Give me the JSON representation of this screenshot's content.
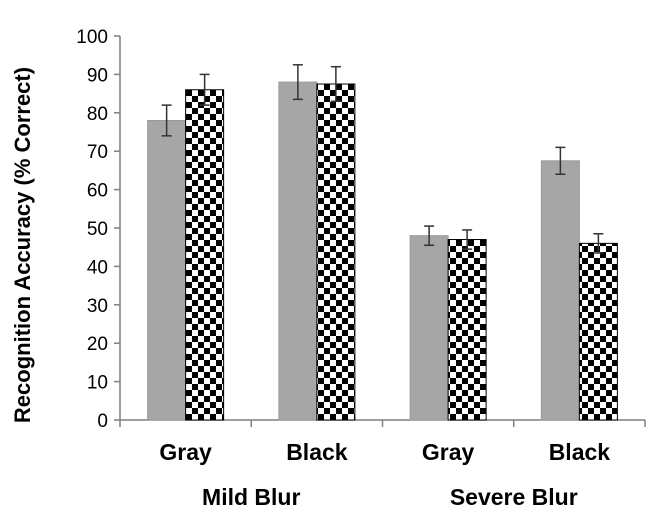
{
  "chart_data": {
    "type": "bar",
    "ylabel": "Recognition Accuracy (% Correct)",
    "xlabel": "",
    "ylim": [
      0,
      100
    ],
    "yticks": [
      "0",
      "10",
      "20",
      "30",
      "40",
      "50",
      "60",
      "70",
      "80",
      "90",
      "100"
    ],
    "groups": [
      {
        "label": "Mild Blur",
        "categories": [
          "Gray",
          "Black"
        ]
      },
      {
        "label": "Severe Blur",
        "categories": [
          "Gray",
          "Black"
        ]
      }
    ],
    "categories": [
      "Gray",
      "Black",
      "Gray",
      "Black"
    ],
    "series": [
      {
        "values": [
          78,
          88,
          48,
          67.5
        ],
        "errors": [
          4,
          4.5,
          2.5,
          3.5
        ],
        "style": "solid",
        "color": "#a6a6a6"
      },
      {
        "values": [
          86,
          87.5,
          47,
          46
        ],
        "errors": [
          4,
          4.5,
          2.5,
          2.5
        ],
        "style": "checkerboard",
        "color": "#000000"
      }
    ],
    "grid": false,
    "legend": "none"
  }
}
